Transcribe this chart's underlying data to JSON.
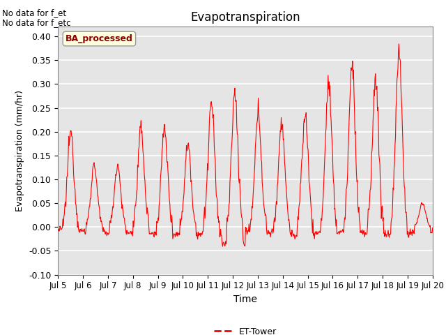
{
  "title": "Evapotranspiration",
  "ylabel": "Evapotranspiration (mm/hr)",
  "xlabel": "Time",
  "ylim": [
    -0.1,
    0.42
  ],
  "yticks": [
    -0.1,
    -0.05,
    0.0,
    0.05,
    0.1,
    0.15,
    0.2,
    0.25,
    0.3,
    0.35,
    0.4
  ],
  "line_color": "#ff0000",
  "bg_color": "#e5e5e5",
  "text_nodata_1": "No data for f_et",
  "text_nodata_2": "No data for f_etc",
  "box_label": "BA_processed",
  "legend_label": "ET-Tower",
  "xticklabels": [
    "Jul 5",
    "Jul 6",
    "Jul 7",
    "Jul 8",
    "Jul 9",
    "Jul 10",
    "Jul 11",
    "Jul 12",
    "Jul 13",
    "Jul 14",
    "Jul 15",
    "Jul 16",
    "Jul 17",
    "Jul 18",
    "Jul 19",
    "Jul 20"
  ],
  "n_days": 16,
  "daily_peaks": [
    0.2,
    0.13,
    0.13,
    0.205,
    0.205,
    0.175,
    0.26,
    0.28,
    0.24,
    0.22,
    0.235,
    0.3,
    0.34,
    0.31,
    0.37,
    0.05
  ],
  "daily_troughs": [
    -0.01,
    -0.015,
    -0.02,
    -0.02,
    -0.025,
    -0.025,
    -0.025,
    -0.06,
    -0.015,
    -0.02,
    -0.03,
    -0.02,
    -0.015,
    -0.025,
    -0.025,
    -0.02
  ]
}
